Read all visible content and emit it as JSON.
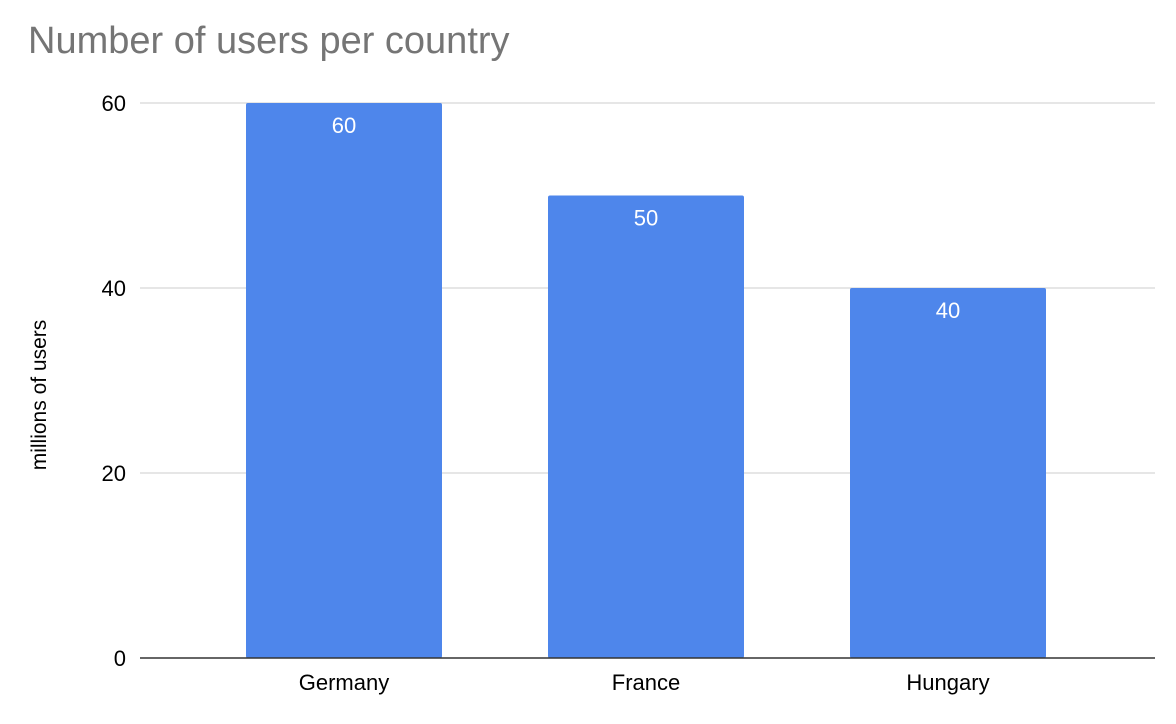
{
  "chart_data": {
    "type": "bar",
    "title": "Number of users per country",
    "xlabel": "",
    "ylabel": "millions of users",
    "categories": [
      "Germany",
      "France",
      "Hungary"
    ],
    "values": [
      60,
      50,
      40
    ],
    "data_labels": [
      "60",
      "50",
      "40"
    ],
    "ylim": [
      0,
      60
    ],
    "yticks": [
      0,
      20,
      40,
      60
    ],
    "grid": true,
    "bar_color": "#4e86eb",
    "legend": "none"
  }
}
